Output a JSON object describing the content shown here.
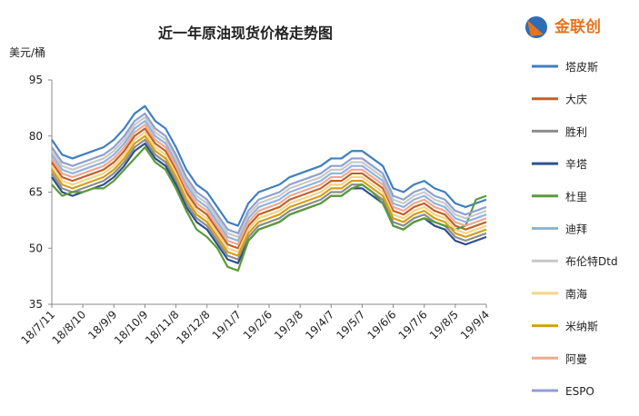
{
  "chart_data": {
    "type": "line",
    "title": "近一年原油现货价格走势图",
    "y_label": "美元/桶",
    "logo": "金联创",
    "categories": [
      "18/7/11",
      null,
      null,
      "18/8/10",
      null,
      null,
      "18/9/9",
      null,
      null,
      "18/10/9",
      null,
      null,
      "18/11/8",
      null,
      null,
      "18/12/8",
      null,
      null,
      "19/1/7",
      null,
      null,
      "19/2/6",
      null,
      null,
      "19/3/8",
      null,
      null,
      "19/4/7",
      null,
      null,
      "19/5/7",
      null,
      null,
      "19/6/6",
      null,
      null,
      "19/7/6",
      null,
      null,
      "19/8/5",
      null,
      null,
      "19/9/4"
    ],
    "ylim": [
      35,
      95
    ],
    "yticks": [
      35,
      50,
      65,
      80,
      95
    ],
    "series": [
      {
        "name": "塔皮斯",
        "color": "#3f7fc0",
        "values": [
          79,
          75,
          74,
          75,
          76,
          77,
          79,
          82,
          86,
          88,
          84,
          82,
          77,
          71,
          67,
          65,
          61,
          57,
          56,
          62,
          65,
          66,
          67,
          69,
          70,
          71,
          72,
          74,
          74,
          76,
          76,
          74,
          72,
          66,
          65,
          67,
          68,
          66,
          65,
          62,
          61,
          62,
          63
        ]
      },
      {
        "name": "大庆",
        "color": "#c0622a",
        "values": [
          73,
          69,
          68,
          69,
          70,
          71,
          73,
          76,
          80,
          82,
          78,
          76,
          71,
          65,
          61,
          59,
          55,
          51,
          50,
          56,
          59,
          60,
          61,
          63,
          64,
          65,
          66,
          68,
          68,
          70,
          70,
          68,
          66,
          60,
          59,
          61,
          62,
          60,
          59,
          56,
          55,
          56,
          57
        ]
      },
      {
        "name": "胜利",
        "color": "#8c8c8c",
        "values": [
          70,
          66,
          65,
          66,
          67,
          68,
          70,
          73,
          77,
          79,
          75,
          73,
          68,
          62,
          58,
          56,
          52,
          48,
          47,
          53,
          56,
          57,
          58,
          60,
          61,
          62,
          63,
          65,
          65,
          67,
          67,
          65,
          63,
          57,
          56,
          58,
          59,
          57,
          56,
          53,
          52,
          53,
          54
        ]
      },
      {
        "name": "辛塔",
        "color": "#2f4f8f",
        "values": [
          69,
          65,
          64,
          65,
          66,
          67,
          69,
          72,
          76,
          78,
          74,
          72,
          67,
          61,
          57,
          55,
          51,
          47,
          46,
          52,
          55,
          56,
          57,
          59,
          60,
          61,
          62,
          64,
          64,
          66,
          66,
          64,
          62,
          56,
          55,
          57,
          58,
          56,
          55,
          52,
          51,
          52,
          53
        ]
      },
      {
        "name": "杜里",
        "color": "#5c9a3a",
        "values": [
          67,
          64,
          65,
          65,
          66,
          66,
          68,
          71,
          74,
          77,
          73,
          71,
          66,
          60,
          55,
          53,
          50,
          45,
          44,
          52,
          55,
          56,
          57,
          59,
          60,
          61,
          62,
          64,
          64,
          66,
          67,
          65,
          62,
          56,
          55,
          57,
          58,
          57,
          56,
          55,
          56,
          63,
          64
        ]
      },
      {
        "name": "迪拜",
        "color": "#8fb3e0",
        "values": [
          75,
          71,
          70,
          71,
          72,
          73,
          75,
          78,
          82,
          84,
          80,
          78,
          73,
          67,
          63,
          61,
          57,
          53,
          52,
          58,
          61,
          62,
          63,
          65,
          66,
          67,
          68,
          70,
          70,
          72,
          72,
          70,
          68,
          62,
          61,
          63,
          64,
          62,
          61,
          58,
          57,
          58,
          59
        ]
      },
      {
        "name": "布伦特Dtd",
        "color": "#c8c8c8",
        "values": [
          76,
          72,
          71,
          72,
          73,
          74,
          76,
          79,
          83,
          85,
          81,
          79,
          74,
          68,
          64,
          62,
          58,
          54,
          53,
          59,
          62,
          63,
          64,
          66,
          67,
          68,
          69,
          71,
          71,
          73,
          73,
          71,
          69,
          63,
          62,
          64,
          65,
          63,
          62,
          59,
          58,
          59,
          60
        ]
      },
      {
        "name": "南海",
        "color": "#f5d38a",
        "values": [
          72,
          68,
          67,
          68,
          69,
          70,
          72,
          75,
          79,
          81,
          77,
          75,
          70,
          64,
          60,
          58,
          54,
          50,
          49,
          55,
          58,
          59,
          60,
          62,
          63,
          64,
          65,
          67,
          67,
          69,
          69,
          67,
          65,
          59,
          58,
          60,
          61,
          59,
          58,
          55,
          54,
          55,
          56
        ]
      },
      {
        "name": "米纳斯",
        "color": "#d4a017",
        "values": [
          71,
          67,
          66,
          67,
          68,
          69,
          71,
          74,
          78,
          80,
          76,
          74,
          69,
          63,
          59,
          57,
          53,
          49,
          48,
          54,
          57,
          58,
          59,
          61,
          62,
          63,
          64,
          66,
          66,
          68,
          68,
          66,
          64,
          58,
          57,
          59,
          60,
          58,
          57,
          54,
          53,
          54,
          55
        ]
      },
      {
        "name": "阿曼",
        "color": "#f0a890",
        "values": [
          74,
          70,
          69,
          70,
          71,
          72,
          74,
          77,
          81,
          83,
          79,
          77,
          72,
          66,
          62,
          60,
          56,
          52,
          51,
          57,
          60,
          61,
          62,
          64,
          65,
          66,
          67,
          69,
          69,
          71,
          71,
          69,
          67,
          61,
          60,
          62,
          63,
          61,
          60,
          57,
          56,
          57,
          58
        ]
      },
      {
        "name": "ESPO",
        "color": "#8ea0d0",
        "values": [
          77,
          73,
          72,
          73,
          74,
          75,
          77,
          80,
          84,
          86,
          82,
          80,
          75,
          69,
          65,
          63,
          59,
          55,
          54,
          60,
          63,
          64,
          65,
          67,
          68,
          69,
          70,
          72,
          72,
          74,
          74,
          72,
          70,
          64,
          63,
          65,
          66,
          64,
          63,
          60,
          59,
          60,
          61
        ]
      }
    ]
  }
}
